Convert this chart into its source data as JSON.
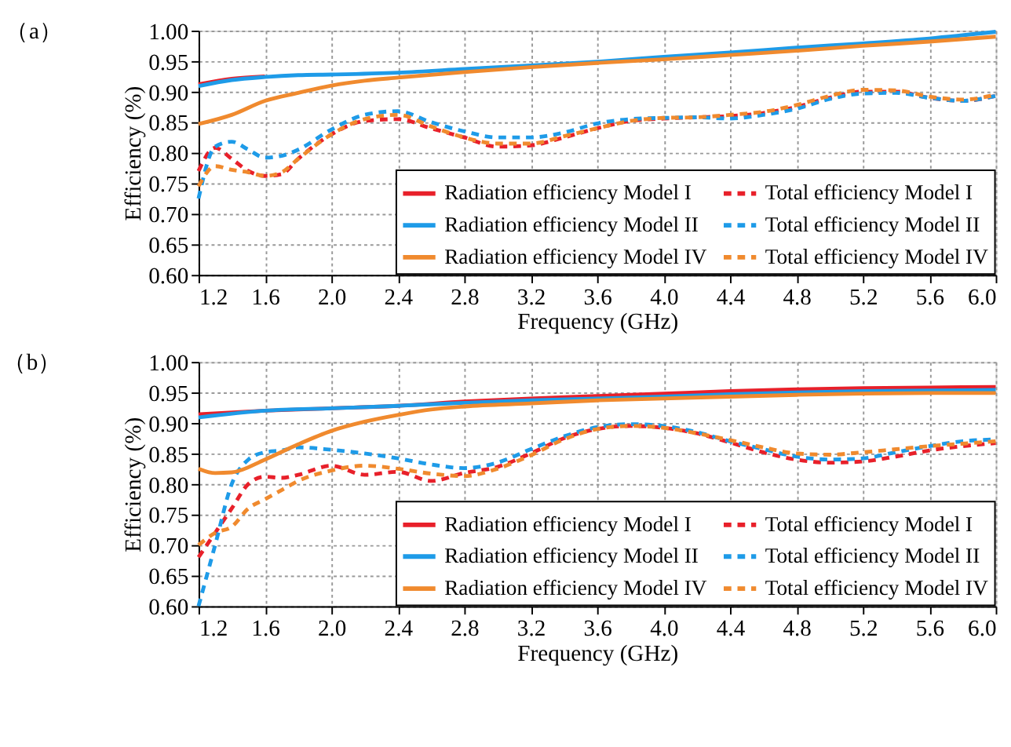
{
  "chart_data": [
    {
      "type": "line",
      "title": "（a）",
      "xlabel": "Frequency (GHz)",
      "ylabel": "Efficiency (%)",
      "xlim": [
        1.2,
        6.0
      ],
      "xticks": [
        1.2,
        1.6,
        {
          "value": 2,
          "label": "2.0"
        },
        2.4,
        2.8,
        3.2,
        3.6,
        {
          "value": 4,
          "label": "4.0"
        },
        4.4,
        4.8,
        5.2,
        5.6,
        {
          "value": 6,
          "label": "6.0"
        }
      ],
      "ylim": [
        0.6,
        1.0
      ],
      "yticks": [
        {
          "value": 0.6,
          "label": "0.60"
        },
        0.65,
        {
          "value": 0.7,
          "label": "0.70"
        },
        0.75,
        {
          "value": 0.8,
          "label": "0.80"
        },
        0.85,
        {
          "value": 0.9,
          "label": "0.90"
        },
        0.95,
        {
          "value": 1,
          "label": "1.00"
        }
      ],
      "grid": true,
      "legend": "bottom right",
      "marker": "none",
      "series": [
        {
          "name": "Radiation efficiency Model I",
          "color": "#e8202a",
          "line_style": "solid",
          "x": [
            1.2,
            1.4,
            1.6
          ],
          "values": [
            0.912,
            0.921,
            0.925
          ]
        },
        {
          "name": "Total efficiency Model I",
          "color": "#e8202a",
          "line_style": "dashed",
          "x": [
            1.2,
            1.3,
            1.4,
            1.5,
            1.6,
            1.7,
            1.8,
            2.0,
            2.2,
            2.4,
            2.6,
            2.8,
            3.0,
            3.2,
            3.4,
            3.6,
            3.8,
            4.0,
            4.2,
            4.4,
            4.6,
            4.8,
            5.0,
            5.2,
            5.4,
            5.6,
            5.8,
            6.0
          ],
          "values": [
            0.77,
            0.808,
            0.79,
            0.77,
            0.762,
            0.765,
            0.79,
            0.83,
            0.852,
            0.855,
            0.84,
            0.825,
            0.81,
            0.812,
            0.825,
            0.84,
            0.852,
            0.856,
            0.858,
            0.86,
            0.865,
            0.875,
            0.89,
            0.9,
            0.9,
            0.89,
            0.885,
            0.893
          ]
        },
        {
          "name": "Radiation efficiency Model II",
          "color": "#1e9be8",
          "line_style": "solid",
          "x": [
            1.2,
            1.4,
            1.6,
            1.8,
            2.0,
            2.4,
            2.8,
            3.2,
            3.6,
            4.0,
            4.4,
            4.8,
            5.2,
            5.6,
            6.0
          ],
          "values": [
            0.909,
            0.919,
            0.924,
            0.927,
            0.928,
            0.931,
            0.937,
            0.943,
            0.949,
            0.957,
            0.964,
            0.972,
            0.979,
            0.987,
            0.998
          ]
        },
        {
          "name": "Total efficiency Model II",
          "color": "#1e9be8",
          "line_style": "dashed",
          "x": [
            1.2,
            1.3,
            1.4,
            1.5,
            1.6,
            1.7,
            1.8,
            2.0,
            2.2,
            2.4,
            2.6,
            2.8,
            3.0,
            3.2,
            3.4,
            3.6,
            3.8,
            4.0,
            4.2,
            4.4,
            4.6,
            4.8,
            5.0,
            5.2,
            5.4,
            5.6,
            5.8,
            6.0
          ],
          "values": [
            0.725,
            0.81,
            0.818,
            0.805,
            0.792,
            0.795,
            0.805,
            0.838,
            0.862,
            0.868,
            0.85,
            0.835,
            0.825,
            0.825,
            0.833,
            0.848,
            0.855,
            0.857,
            0.858,
            0.856,
            0.862,
            0.872,
            0.888,
            0.897,
            0.898,
            0.89,
            0.885,
            0.893
          ]
        },
        {
          "name": "Radiation efficiency Model IV",
          "color": "#f08a2e",
          "line_style": "solid",
          "x": [
            1.2,
            1.4,
            1.6,
            1.8,
            2.0,
            2.2,
            2.4,
            2.8,
            3.2,
            3.6,
            4.0,
            4.4,
            4.8,
            5.2,
            5.6,
            6.0
          ],
          "values": [
            0.847,
            0.862,
            0.885,
            0.898,
            0.91,
            0.918,
            0.923,
            0.932,
            0.94,
            0.947,
            0.953,
            0.96,
            0.967,
            0.975,
            0.982,
            0.99
          ]
        },
        {
          "name": "Total efficiency Model IV",
          "color": "#f08a2e",
          "line_style": "dashed",
          "x": [
            1.2,
            1.3,
            1.4,
            1.5,
            1.6,
            1.7,
            1.8,
            2.0,
            2.2,
            2.4,
            2.6,
            2.8,
            3.0,
            3.2,
            3.4,
            3.6,
            3.8,
            4.0,
            4.2,
            4.4,
            4.6,
            4.8,
            5.0,
            5.2,
            5.4,
            5.6,
            5.8,
            6.0
          ],
          "values": [
            0.745,
            0.778,
            0.772,
            0.768,
            0.762,
            0.768,
            0.79,
            0.83,
            0.855,
            0.862,
            0.843,
            0.825,
            0.815,
            0.815,
            0.827,
            0.84,
            0.852,
            0.857,
            0.858,
            0.862,
            0.867,
            0.878,
            0.893,
            0.903,
            0.902,
            0.892,
            0.887,
            0.895
          ]
        }
      ]
    },
    {
      "type": "line",
      "title": "（b）",
      "xlabel": "Frequency (GHz)",
      "ylabel": "Efficiency (%)",
      "xlim": [
        1.2,
        6.0
      ],
      "xticks": [
        1.2,
        1.6,
        {
          "value": 2,
          "label": "2.0"
        },
        2.4,
        2.8,
        3.2,
        3.6,
        {
          "value": 4,
          "label": "4.0"
        },
        4.4,
        4.8,
        5.2,
        5.6,
        {
          "value": 6,
          "label": "6.0"
        }
      ],
      "ylim": [
        0.6,
        1.0
      ],
      "yticks": [
        {
          "value": 0.6,
          "label": "0.60"
        },
        0.65,
        {
          "value": 0.7,
          "label": "0.70"
        },
        0.75,
        {
          "value": 0.8,
          "label": "0.80"
        },
        0.85,
        {
          "value": 0.9,
          "label": "0.90"
        },
        0.95,
        {
          "value": 1,
          "label": "1.00"
        }
      ],
      "grid": true,
      "legend": "bottom right",
      "marker": "none",
      "series": [
        {
          "name": "Radiation efficiency Model I",
          "color": "#e8202a",
          "line_style": "solid",
          "x": [
            1.2,
            1.6,
            2.0,
            2.4,
            2.8,
            3.2,
            3.6,
            4.0,
            4.4,
            4.8,
            5.2,
            5.6,
            6.0
          ],
          "values": [
            0.914,
            0.92,
            0.924,
            0.928,
            0.935,
            0.94,
            0.944,
            0.948,
            0.952,
            0.955,
            0.957,
            0.958,
            0.959
          ]
        },
        {
          "name": "Total efficiency Model I",
          "color": "#e8202a",
          "line_style": "dashed",
          "x": [
            1.2,
            1.3,
            1.4,
            1.5,
            1.6,
            1.7,
            1.8,
            2.0,
            2.2,
            2.4,
            2.6,
            2.8,
            3.0,
            3.2,
            3.4,
            3.6,
            3.8,
            4.0,
            4.2,
            4.4,
            4.6,
            4.8,
            5.0,
            5.2,
            5.4,
            5.6,
            5.8,
            6.0
          ],
          "values": [
            0.68,
            0.72,
            0.76,
            0.8,
            0.812,
            0.81,
            0.815,
            0.83,
            0.815,
            0.82,
            0.805,
            0.818,
            0.828,
            0.85,
            0.875,
            0.89,
            0.895,
            0.892,
            0.883,
            0.868,
            0.852,
            0.84,
            0.835,
            0.837,
            0.845,
            0.855,
            0.862,
            0.867
          ]
        },
        {
          "name": "Radiation efficiency Model II",
          "color": "#1e9be8",
          "line_style": "solid",
          "x": [
            1.2,
            1.6,
            2.0,
            2.4,
            2.8,
            3.2,
            3.6,
            4.0,
            4.4,
            4.8,
            5.2,
            5.6,
            6.0
          ],
          "values": [
            0.909,
            0.92,
            0.924,
            0.928,
            0.933,
            0.937,
            0.94,
            0.943,
            0.947,
            0.95,
            0.952,
            0.953,
            0.954
          ]
        },
        {
          "name": "Total efficiency Model II",
          "color": "#1e9be8",
          "line_style": "dashed",
          "x": [
            1.2,
            1.3,
            1.4,
            1.5,
            1.6,
            1.7,
            1.8,
            2.0,
            2.2,
            2.4,
            2.6,
            2.8,
            3.0,
            3.2,
            3.4,
            3.6,
            3.8,
            4.0,
            4.2,
            4.4,
            4.6,
            4.8,
            5.0,
            5.2,
            5.4,
            5.6,
            5.8,
            6.0
          ],
          "values": [
            0.6,
            0.7,
            0.8,
            0.84,
            0.852,
            0.855,
            0.86,
            0.856,
            0.85,
            0.842,
            0.832,
            0.826,
            0.835,
            0.857,
            0.878,
            0.893,
            0.898,
            0.895,
            0.885,
            0.87,
            0.857,
            0.845,
            0.84,
            0.842,
            0.852,
            0.862,
            0.87,
            0.873
          ]
        },
        {
          "name": "Radiation efficiency Model IV",
          "color": "#f08a2e",
          "line_style": "solid",
          "x": [
            1.2,
            1.3,
            1.4,
            1.6,
            1.8,
            2.0,
            2.2,
            2.4,
            2.6,
            2.8,
            3.2,
            3.6,
            4.0,
            4.4,
            4.8,
            5.2,
            5.6,
            6.0
          ],
          "values": [
            0.825,
            0.818,
            0.819,
            0.84,
            0.865,
            0.887,
            0.902,
            0.913,
            0.922,
            0.927,
            0.932,
            0.937,
            0.94,
            0.943,
            0.946,
            0.948,
            0.949,
            0.949
          ]
        },
        {
          "name": "Total efficiency Model IV",
          "color": "#f08a2e",
          "line_style": "dashed",
          "x": [
            1.2,
            1.3,
            1.4,
            1.5,
            1.6,
            1.7,
            1.8,
            2.0,
            2.2,
            2.4,
            2.6,
            2.8,
            3.0,
            3.2,
            3.4,
            3.6,
            3.8,
            4.0,
            4.2,
            4.4,
            4.6,
            4.8,
            5.0,
            5.2,
            5.4,
            5.6,
            5.8,
            6.0
          ],
          "values": [
            0.7,
            0.72,
            0.73,
            0.76,
            0.775,
            0.79,
            0.805,
            0.822,
            0.83,
            0.825,
            0.817,
            0.813,
            0.825,
            0.847,
            0.873,
            0.89,
            0.895,
            0.892,
            0.883,
            0.872,
            0.86,
            0.85,
            0.848,
            0.852,
            0.857,
            0.862,
            0.866,
            0.87
          ]
        }
      ]
    }
  ]
}
